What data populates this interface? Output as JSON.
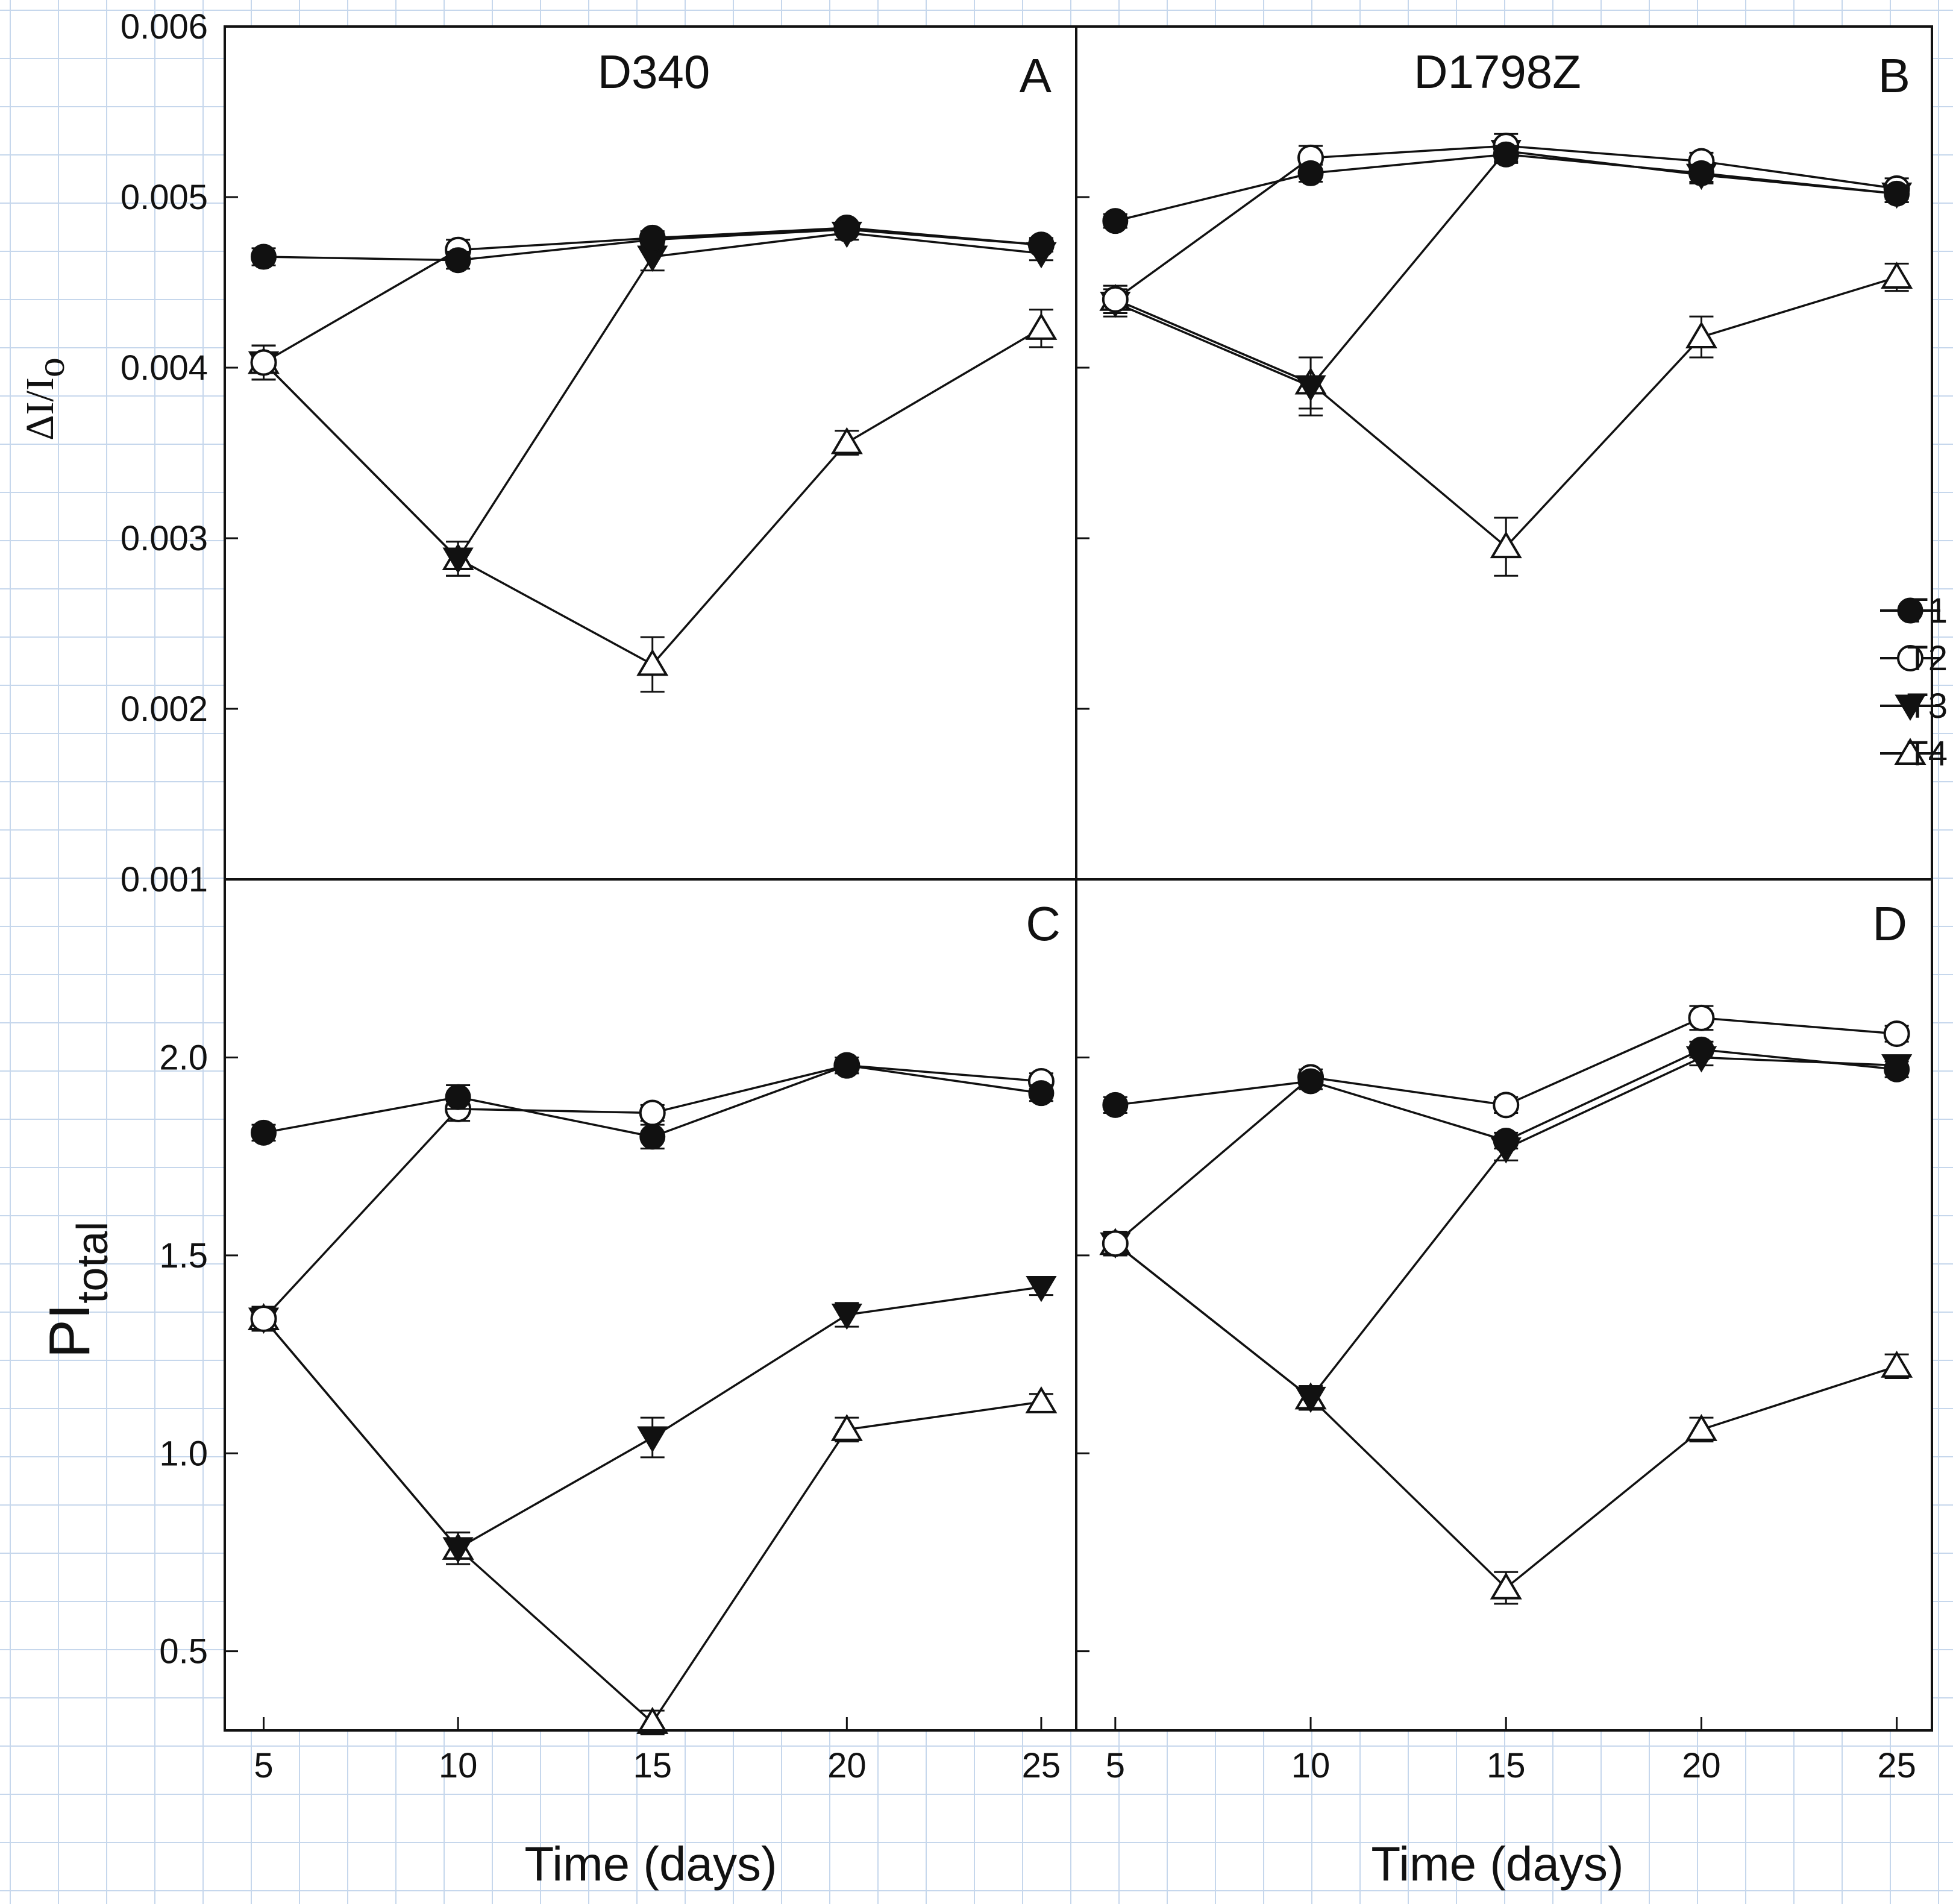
{
  "colors": {
    "grid": "#c6d7ec",
    "line": "#111111",
    "background": "#ffffff"
  },
  "legend": {
    "entries": [
      {
        "name": "T1",
        "marker": "filled-circle"
      },
      {
        "name": "T2",
        "marker": "open-circle"
      },
      {
        "name": "T3",
        "marker": "filled-triangle-down"
      },
      {
        "name": "T4",
        "marker": "open-triangle-up"
      }
    ]
  },
  "axes": {
    "xlabel": "Time (days)",
    "xticks": [
      "5",
      "10",
      "15",
      "20",
      "25"
    ],
    "ylabel_top": {
      "main": "ΔI/I",
      "sub": "o"
    },
    "ylabel_bottom": {
      "main": "PI",
      "sub": "total"
    },
    "yticks_top": [
      "0.001",
      "0.002",
      "0.003",
      "0.004",
      "0.005",
      "0.006"
    ],
    "yticks_bottom": [
      "0.5",
      "1.0",
      "1.5",
      "2.0"
    ]
  },
  "chart_data": [
    {
      "type": "line",
      "panel": "A",
      "title": "D340",
      "ylabel": "ΔI/Io",
      "xlabel": "Time (days)",
      "xlim": [
        4,
        25.9
      ],
      "ylim": [
        0.001,
        0.006
      ],
      "x": [
        5,
        10,
        15,
        20,
        25
      ],
      "series": [
        {
          "name": "T1",
          "values": [
            0.00465,
            0.00463,
            0.00475,
            0.00481,
            0.00472
          ],
          "errors": [
            5e-05,
            5e-05,
            4e-05,
            3e-05,
            4e-05
          ]
        },
        {
          "name": "T2",
          "values": [
            0.00403,
            0.00469,
            0.00476,
            0.00482,
            0.00472
          ],
          "errors": [
            0.0001,
            6e-05,
            4e-05,
            3e-05,
            4e-05
          ]
        },
        {
          "name": "T3",
          "values": [
            0.00403,
            0.00288,
            0.00465,
            0.00479,
            0.00467
          ],
          "errors": [
            0.0001,
            0.0001,
            8e-05,
            4e-05,
            4e-05
          ]
        },
        {
          "name": "T4",
          "values": [
            0.00403,
            0.00288,
            0.00226,
            0.00356,
            0.00423
          ],
          "errors": [
            0.0001,
            0.0001,
            0.00016,
            7e-05,
            0.00011
          ]
        }
      ]
    },
    {
      "type": "line",
      "panel": "B",
      "title": "D1798Z",
      "ylabel": "ΔI/Io",
      "xlabel": "Time (days)",
      "xlim": [
        4,
        25.9
      ],
      "ylim": [
        0.001,
        0.006
      ],
      "x": [
        5,
        10,
        15,
        20,
        25
      ],
      "series": [
        {
          "name": "T1",
          "values": [
            0.00486,
            0.00514,
            0.00525,
            0.00514,
            0.00502
          ],
          "errors": [
            4e-05,
            5e-05,
            5e-05,
            5e-05,
            5e-05
          ]
        },
        {
          "name": "T2",
          "values": [
            0.0044,
            0.00523,
            0.0053,
            0.00521,
            0.00505
          ],
          "errors": [
            8e-05,
            7e-05,
            7e-05,
            5e-05,
            6e-05
          ]
        },
        {
          "name": "T3",
          "values": [
            0.00438,
            0.00389,
            0.00527,
            0.00513,
            0.00502
          ],
          "errors": [
            8e-05,
            0.00017,
            6e-05,
            5e-05,
            5e-05
          ]
        },
        {
          "name": "T4",
          "values": [
            0.0044,
            0.00391,
            0.00295,
            0.00418,
            0.00453
          ],
          "errors": [
            8e-05,
            0.00015,
            0.00017,
            0.00012,
            8e-05
          ]
        }
      ]
    },
    {
      "type": "line",
      "panel": "C",
      "title": "",
      "ylabel": "PItotal",
      "xlabel": "Time (days)",
      "xlim": [
        4,
        25.9
      ],
      "ylim": [
        0.3,
        2.45
      ],
      "x": [
        5,
        10,
        15,
        20,
        25
      ],
      "series": [
        {
          "name": "T1",
          "values": [
            1.81,
            1.9,
            1.8,
            1.98,
            1.91
          ],
          "errors": [
            0.02,
            0.03,
            0.03,
            0.02,
            0.02
          ]
        },
        {
          "name": "T2",
          "values": [
            1.34,
            1.87,
            1.86,
            1.98,
            1.94
          ],
          "errors": [
            0.03,
            0.03,
            0.02,
            0.02,
            0.02
          ]
        },
        {
          "name": "T3",
          "values": [
            1.34,
            0.76,
            1.04,
            1.35,
            1.42
          ],
          "errors": [
            0.03,
            0.04,
            0.05,
            0.03,
            0.02
          ]
        },
        {
          "name": "T4",
          "values": [
            1.34,
            0.76,
            0.32,
            1.06,
            1.13
          ],
          "errors": [
            0.03,
            0.04,
            0.03,
            0.03,
            0.02
          ]
        }
      ]
    },
    {
      "type": "line",
      "panel": "D",
      "title": "",
      "ylabel": "PItotal",
      "xlabel": "Time (days)",
      "xlim": [
        4,
        25.9
      ],
      "ylim": [
        0.3,
        2.45
      ],
      "x": [
        5,
        10,
        15,
        20,
        25
      ],
      "series": [
        {
          "name": "T1",
          "values": [
            1.88,
            1.94,
            1.79,
            2.02,
            1.97
          ],
          "errors": [
            0.02,
            0.02,
            0.02,
            0.02,
            0.02
          ]
        },
        {
          "name": "T2",
          "values": [
            1.53,
            1.95,
            1.88,
            2.1,
            2.06
          ],
          "errors": [
            0.03,
            0.02,
            0.02,
            0.03,
            0.02
          ]
        },
        {
          "name": "T3",
          "values": [
            1.53,
            1.14,
            1.77,
            2.0,
            1.98
          ],
          "errors": [
            0.03,
            0.03,
            0.03,
            0.02,
            0.02
          ]
        },
        {
          "name": "T4",
          "values": [
            1.53,
            1.14,
            0.66,
            1.06,
            1.22
          ],
          "errors": [
            0.03,
            0.03,
            0.04,
            0.03,
            0.03
          ]
        }
      ]
    }
  ]
}
